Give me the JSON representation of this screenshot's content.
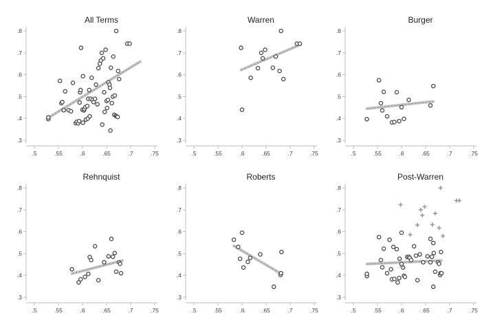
{
  "chart_data": [
    {
      "type": "scatter",
      "title": "All Terms",
      "xlim": [
        0.5,
        0.75
      ],
      "ylim": [
        0.3,
        0.8
      ],
      "xticks": [
        ".5",
        ".55",
        ".6",
        ".65",
        ".7",
        ".75"
      ],
      "yticks": [
        ".3",
        ".4",
        ".5",
        ".6",
        ".7",
        ".8"
      ],
      "fit": {
        "x": [
          0.53,
          0.72
        ],
        "y": [
          0.405,
          0.66
        ]
      },
      "series": [
        {
          "marker": "hollow-circle",
          "points": [
            [
              0.529,
              0.397
            ],
            [
              0.529,
              0.405
            ],
            [
              0.553,
              0.572
            ],
            [
              0.556,
              0.47
            ],
            [
              0.558,
              0.475
            ],
            [
              0.561,
              0.438
            ],
            [
              0.564,
              0.524
            ],
            [
              0.571,
              0.438
            ],
            [
              0.576,
              0.433
            ],
            [
              0.58,
              0.563
            ],
            [
              0.586,
              0.379
            ],
            [
              0.588,
              0.385
            ],
            [
              0.591,
              0.378
            ],
            [
              0.593,
              0.388
            ],
            [
              0.594,
              0.473
            ],
            [
              0.595,
              0.52
            ],
            [
              0.596,
              0.53
            ],
            [
              0.597,
              0.723
            ],
            [
              0.6,
              0.44
            ],
            [
              0.601,
              0.593
            ],
            [
              0.601,
              0.381
            ],
            [
              0.603,
              0.437
            ],
            [
              0.604,
              0.443
            ],
            [
              0.606,
              0.452
            ],
            [
              0.607,
              0.395
            ],
            [
              0.61,
              0.457
            ],
            [
              0.611,
              0.4
            ],
            [
              0.612,
              0.49
            ],
            [
              0.614,
              0.53
            ],
            [
              0.615,
              0.41
            ],
            [
              0.617,
              0.49
            ],
            [
              0.619,
              0.586
            ],
            [
              0.621,
              0.485
            ],
            [
              0.623,
              0.475
            ],
            [
              0.626,
              0.49
            ],
            [
              0.628,
              0.555
            ],
            [
              0.631,
              0.465
            ],
            [
              0.633,
              0.63
            ],
            [
              0.636,
              0.65
            ],
            [
              0.638,
              0.665
            ],
            [
              0.64,
              0.7
            ],
            [
              0.641,
              0.372
            ],
            [
              0.643,
              0.675
            ],
            [
              0.645,
              0.52
            ],
            [
              0.646,
              0.43
            ],
            [
              0.648,
              0.714
            ],
            [
              0.65,
              0.48
            ],
            [
              0.651,
              0.448
            ],
            [
              0.653,
              0.485
            ],
            [
              0.654,
              0.565
            ],
            [
              0.656,
              0.555
            ],
            [
              0.657,
              0.54
            ],
            [
              0.658,
              0.345
            ],
            [
              0.659,
              0.632
            ],
            [
              0.661,
              0.47
            ],
            [
              0.663,
              0.5
            ],
            [
              0.664,
              0.683
            ],
            [
              0.666,
              0.417
            ],
            [
              0.667,
              0.505
            ],
            [
              0.669,
              0.412
            ],
            [
              0.671,
              0.41
            ],
            [
              0.673,
              0.407
            ],
            [
              0.674,
              0.617
            ],
            [
              0.676,
              0.58
            ],
            [
              0.67,
              0.8
            ],
            [
              0.693,
              0.742
            ],
            [
              0.698,
              0.742
            ]
          ]
        }
      ]
    },
    {
      "type": "scatter",
      "title": "Warren",
      "xlim": [
        0.5,
        0.75
      ],
      "ylim": [
        0.3,
        0.8
      ],
      "xticks": [
        ".5",
        ".55",
        ".6",
        ".65",
        ".7",
        ".75"
      ],
      "yticks": [
        ".3",
        ".4",
        ".5",
        ".6",
        ".7",
        ".8"
      ],
      "fit": {
        "x": [
          0.598,
          0.722
        ],
        "y": [
          0.622,
          0.738
        ]
      },
      "series": [
        {
          "marker": "hollow-circle",
          "points": [
            [
              0.598,
              0.723
            ],
            [
              0.6,
              0.44
            ],
            [
              0.618,
              0.586
            ],
            [
              0.633,
              0.63
            ],
            [
              0.64,
              0.7
            ],
            [
              0.643,
              0.675
            ],
            [
              0.648,
              0.714
            ],
            [
              0.664,
              0.632
            ],
            [
              0.67,
              0.683
            ],
            [
              0.678,
              0.617
            ],
            [
              0.681,
              0.8
            ],
            [
              0.686,
              0.58
            ],
            [
              0.714,
              0.742
            ],
            [
              0.72,
              0.742
            ]
          ]
        }
      ]
    },
    {
      "type": "scatter",
      "title": "Burger",
      "xlim": [
        0.5,
        0.75
      ],
      "ylim": [
        0.3,
        0.8
      ],
      "xticks": [
        ".5",
        ".55",
        ".6",
        ".65",
        ".7",
        ".75"
      ],
      "yticks": [
        ".3",
        ".4",
        ".5",
        ".6",
        ".7",
        ".8"
      ],
      "fit": {
        "x": [
          0.528,
          0.666
        ],
        "y": [
          0.445,
          0.478
        ]
      },
      "series": [
        {
          "marker": "hollow-circle",
          "points": [
            [
              0.528,
              0.397
            ],
            [
              0.553,
              0.575
            ],
            [
              0.557,
              0.47
            ],
            [
              0.56,
              0.437
            ],
            [
              0.563,
              0.522
            ],
            [
              0.57,
              0.41
            ],
            [
              0.58,
              0.382
            ],
            [
              0.585,
              0.384
            ],
            [
              0.59,
              0.52
            ],
            [
              0.595,
              0.388
            ],
            [
              0.6,
              0.452
            ],
            [
              0.605,
              0.398
            ],
            [
              0.615,
              0.485
            ],
            [
              0.66,
              0.46
            ],
            [
              0.666,
              0.548
            ]
          ]
        }
      ]
    },
    {
      "type": "scatter",
      "title": "Rehnquist",
      "xlim": [
        0.5,
        0.75
      ],
      "ylim": [
        0.3,
        0.8
      ],
      "xticks": [
        ".5",
        ".55",
        ".6",
        ".65",
        ".7",
        ".75"
      ],
      "yticks": [
        ".3",
        ".4",
        ".5",
        ".6",
        ".7",
        ".8"
      ],
      "fit": {
        "x": [
          0.578,
          0.683
        ],
        "y": [
          0.408,
          0.468
        ]
      },
      "series": [
        {
          "marker": "hollow-circle",
          "points": [
            [
              0.578,
              0.428
            ],
            [
              0.592,
              0.368
            ],
            [
              0.596,
              0.382
            ],
            [
              0.605,
              0.393
            ],
            [
              0.612,
              0.407
            ],
            [
              0.615,
              0.484
            ],
            [
              0.618,
              0.47
            ],
            [
              0.626,
              0.533
            ],
            [
              0.633,
              0.378
            ],
            [
              0.645,
              0.46
            ],
            [
              0.654,
              0.487
            ],
            [
              0.66,
              0.567
            ],
            [
              0.663,
              0.485
            ],
            [
              0.667,
              0.502
            ],
            [
              0.67,
              0.417
            ],
            [
              0.676,
              0.46
            ],
            [
              0.678,
              0.453
            ],
            [
              0.68,
              0.41
            ]
          ]
        }
      ]
    },
    {
      "type": "scatter",
      "title": "Roberts",
      "xlim": [
        0.5,
        0.75
      ],
      "ylim": [
        0.3,
        0.8
      ],
      "xticks": [
        ".5",
        ".55",
        ".6",
        ".65",
        ".7",
        ".75"
      ],
      "yticks": [
        ".3",
        ".4",
        ".5",
        ".6",
        ".7",
        ".8"
      ],
      "fit": {
        "x": [
          0.583,
          0.683
        ],
        "y": [
          0.535,
          0.405
        ]
      },
      "series": [
        {
          "marker": "hollow-circle",
          "points": [
            [
              0.583,
              0.563
            ],
            [
              0.592,
              0.53
            ],
            [
              0.596,
              0.476
            ],
            [
              0.6,
              0.595
            ],
            [
              0.603,
              0.436
            ],
            [
              0.612,
              0.462
            ],
            [
              0.617,
              0.48
            ],
            [
              0.638,
              0.496
            ],
            [
              0.666,
              0.348
            ],
            [
              0.68,
              0.402
            ],
            [
              0.681,
              0.41
            ],
            [
              0.682,
              0.507
            ]
          ]
        }
      ]
    },
    {
      "type": "scatter",
      "title": "Post-Warren",
      "xlim": [
        0.5,
        0.75
      ],
      "ylim": [
        0.3,
        0.8
      ],
      "xticks": [
        ".5",
        ".55",
        ".6",
        ".65",
        ".7",
        ".75"
      ],
      "yticks": [
        ".3",
        ".4",
        ".5",
        ".6",
        ".7",
        ".8"
      ],
      "fit": {
        "x": [
          0.528,
          0.683
        ],
        "y": [
          0.452,
          0.468
        ]
      },
      "series": [
        {
          "marker": "hollow-circle",
          "points": [
            [
              0.528,
              0.397
            ],
            [
              0.528,
              0.407
            ],
            [
              0.553,
              0.575
            ],
            [
              0.557,
              0.47
            ],
            [
              0.56,
              0.437
            ],
            [
              0.563,
              0.522
            ],
            [
              0.57,
              0.41
            ],
            [
              0.575,
              0.563
            ],
            [
              0.578,
              0.428
            ],
            [
              0.58,
              0.382
            ],
            [
              0.583,
              0.53
            ],
            [
              0.585,
              0.384
            ],
            [
              0.59,
              0.52
            ],
            [
              0.592,
              0.368
            ],
            [
              0.595,
              0.388
            ],
            [
              0.596,
              0.476
            ],
            [
              0.6,
              0.452
            ],
            [
              0.6,
              0.595
            ],
            [
              0.603,
              0.436
            ],
            [
              0.605,
              0.398
            ],
            [
              0.607,
              0.393
            ],
            [
              0.612,
              0.484
            ],
            [
              0.615,
              0.485
            ],
            [
              0.617,
              0.48
            ],
            [
              0.62,
              0.47
            ],
            [
              0.626,
              0.533
            ],
            [
              0.63,
              0.49
            ],
            [
              0.633,
              0.378
            ],
            [
              0.638,
              0.496
            ],
            [
              0.645,
              0.46
            ],
            [
              0.654,
              0.487
            ],
            [
              0.66,
              0.567
            ],
            [
              0.66,
              0.46
            ],
            [
              0.663,
              0.485
            ],
            [
              0.666,
              0.548
            ],
            [
              0.666,
              0.348
            ],
            [
              0.667,
              0.502
            ],
            [
              0.67,
              0.417
            ],
            [
              0.676,
              0.46
            ],
            [
              0.678,
              0.453
            ],
            [
              0.68,
              0.402
            ],
            [
              0.681,
              0.41
            ],
            [
              0.682,
              0.507
            ],
            [
              0.683,
              0.41
            ]
          ]
        },
        {
          "marker": "plus",
          "points": [
            [
              0.598,
              0.723
            ],
            [
              0.6,
              0.44
            ],
            [
              0.618,
              0.586
            ],
            [
              0.633,
              0.63
            ],
            [
              0.64,
              0.7
            ],
            [
              0.643,
              0.675
            ],
            [
              0.648,
              0.714
            ],
            [
              0.664,
              0.632
            ],
            [
              0.67,
              0.683
            ],
            [
              0.678,
              0.617
            ],
            [
              0.681,
              0.8
            ],
            [
              0.686,
              0.58
            ],
            [
              0.714,
              0.742
            ],
            [
              0.72,
              0.742
            ]
          ]
        }
      ]
    }
  ],
  "colors": {
    "marker": "#555555",
    "fit_line": "#bcbcbc",
    "fit_dash": "#8f8f8f",
    "axis": "#bbbbbb"
  }
}
